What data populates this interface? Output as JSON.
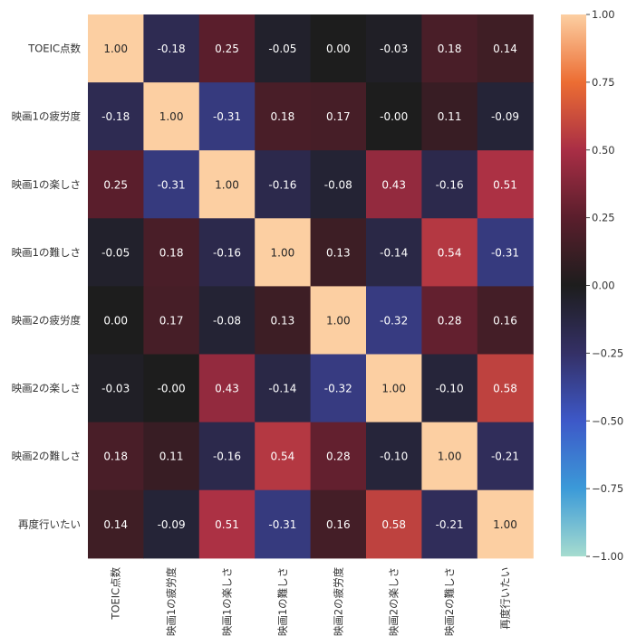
{
  "chart_data": {
    "type": "heatmap",
    "labels": [
      "TOEIC点数",
      "映画1の疲労度",
      "映画1の楽しさ",
      "映画1の難しさ",
      "映画2の疲労度",
      "映画2の楽しさ",
      "映画2の難しさ",
      "再度行いたい"
    ],
    "matrix": [
      [
        1.0,
        -0.18,
        0.25,
        -0.05,
        0.0,
        -0.03,
        0.18,
        0.14
      ],
      [
        -0.18,
        1.0,
        -0.31,
        0.18,
        0.17,
        -0.0,
        0.11,
        -0.09
      ],
      [
        0.25,
        -0.31,
        1.0,
        -0.16,
        -0.08,
        0.43,
        -0.16,
        0.51
      ],
      [
        -0.05,
        0.18,
        -0.16,
        1.0,
        0.13,
        -0.14,
        0.54,
        -0.31
      ],
      [
        0.0,
        0.17,
        -0.08,
        0.13,
        1.0,
        -0.32,
        0.28,
        0.16
      ],
      [
        -0.03,
        -0.0,
        0.43,
        -0.14,
        -0.32,
        1.0,
        -0.1,
        0.58
      ],
      [
        0.18,
        0.11,
        -0.16,
        0.54,
        0.28,
        -0.1,
        1.0,
        -0.21
      ],
      [
        0.14,
        -0.09,
        0.51,
        -0.31,
        0.16,
        0.58,
        -0.21,
        1.0
      ]
    ],
    "cell_text": [
      [
        "1.00",
        "-0.18",
        "0.25",
        "-0.05",
        "0.00",
        "-0.03",
        "0.18",
        "0.14"
      ],
      [
        "-0.18",
        "1.00",
        "-0.31",
        "0.18",
        "0.17",
        "-0.00",
        "0.11",
        "-0.09"
      ],
      [
        "0.25",
        "-0.31",
        "1.00",
        "-0.16",
        "-0.08",
        "0.43",
        "-0.16",
        "0.51"
      ],
      [
        "-0.05",
        "0.18",
        "-0.16",
        "1.00",
        "0.13",
        "-0.14",
        "0.54",
        "-0.31"
      ],
      [
        "0.00",
        "0.17",
        "-0.08",
        "0.13",
        "1.00",
        "-0.32",
        "0.28",
        "0.16"
      ],
      [
        "-0.03",
        "-0.00",
        "0.43",
        "-0.14",
        "-0.32",
        "1.00",
        "-0.10",
        "0.58"
      ],
      [
        "0.18",
        "0.11",
        "-0.16",
        "0.54",
        "0.28",
        "-0.10",
        "1.00",
        "-0.21"
      ],
      [
        "0.14",
        "-0.09",
        "0.51",
        "-0.31",
        "0.16",
        "0.58",
        "-0.21",
        "1.00"
      ]
    ],
    "colorbar": {
      "vmin": -1.0,
      "vmax": 1.0,
      "ticks": [
        1.0,
        0.75,
        0.5,
        0.25,
        0.0,
        -0.25,
        -0.5,
        -0.75,
        -1.0
      ],
      "tick_labels": [
        "1.00",
        "0.75",
        "0.50",
        "0.25",
        "0.00",
        "−0.25",
        "−0.50",
        "−0.75",
        "−1.00"
      ],
      "colormap": "icefire",
      "color_stops": [
        {
          "v": -1.0,
          "c": "#a6dccf"
        },
        {
          "v": -0.75,
          "c": "#3b9ad8"
        },
        {
          "v": -0.5,
          "c": "#3d58c8"
        },
        {
          "v": -0.25,
          "c": "#343066"
        },
        {
          "v": 0.0,
          "c": "#1d1d1d"
        },
        {
          "v": 0.25,
          "c": "#5a1e2c"
        },
        {
          "v": 0.5,
          "c": "#a92e45"
        },
        {
          "v": 0.75,
          "c": "#ec6d33"
        },
        {
          "v": 1.0,
          "c": "#fccfa2"
        }
      ]
    }
  }
}
